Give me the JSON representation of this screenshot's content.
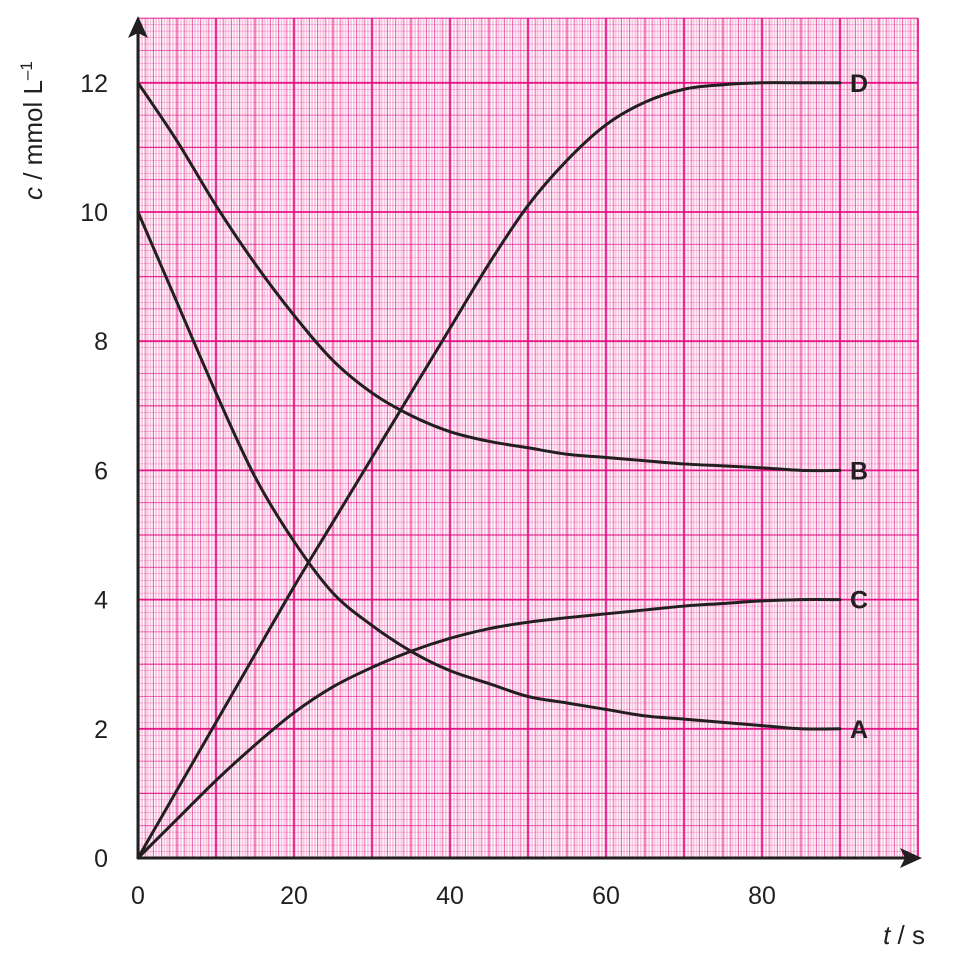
{
  "chart_data": {
    "type": "line",
    "title": "",
    "xlabel": {
      "symbol": "t",
      "unit": " / s"
    },
    "ylabel": {
      "symbol": "c",
      "unit": " / mmol L",
      "sup": "–1"
    },
    "xlim": [
      0,
      100
    ],
    "ylim": [
      0,
      13
    ],
    "xticks": [
      0,
      20,
      40,
      60,
      80
    ],
    "yticks": [
      0,
      2,
      4,
      6,
      8,
      10,
      12
    ],
    "grid": true,
    "colors": {
      "grid": "#e4007c",
      "line": "#231f20",
      "background": "#ffffff"
    },
    "series": [
      {
        "name": "A",
        "x": [
          0,
          5,
          10,
          15,
          20,
          25,
          30,
          35,
          40,
          45,
          50,
          55,
          60,
          65,
          70,
          75,
          80,
          85,
          90
        ],
        "y": [
          10,
          8.6,
          7.2,
          5.9,
          4.9,
          4.1,
          3.6,
          3.2,
          2.9,
          2.7,
          2.5,
          2.4,
          2.3,
          2.2,
          2.15,
          2.1,
          2.05,
          2.0,
          2.0
        ]
      },
      {
        "name": "B",
        "x": [
          0,
          5,
          10,
          15,
          20,
          25,
          30,
          35,
          40,
          45,
          50,
          55,
          60,
          65,
          70,
          75,
          80,
          85,
          90
        ],
        "y": [
          12,
          11.1,
          10.1,
          9.2,
          8.4,
          7.7,
          7.2,
          6.85,
          6.6,
          6.45,
          6.35,
          6.25,
          6.2,
          6.15,
          6.1,
          6.07,
          6.04,
          6.0,
          6.0
        ]
      },
      {
        "name": "C",
        "x": [
          0,
          5,
          10,
          15,
          20,
          25,
          30,
          35,
          40,
          45,
          50,
          55,
          60,
          65,
          70,
          75,
          80,
          85,
          90
        ],
        "y": [
          0,
          0.6,
          1.2,
          1.75,
          2.25,
          2.65,
          2.95,
          3.2,
          3.4,
          3.55,
          3.65,
          3.72,
          3.78,
          3.84,
          3.9,
          3.94,
          3.98,
          4.0,
          4.0
        ]
      },
      {
        "name": "D",
        "x": [
          0,
          5,
          10,
          15,
          20,
          25,
          30,
          35,
          40,
          45,
          50,
          55,
          60,
          65,
          70,
          75,
          80,
          85,
          90
        ],
        "y": [
          0,
          1.05,
          2.1,
          3.15,
          4.2,
          5.2,
          6.2,
          7.2,
          8.2,
          9.2,
          10.1,
          10.8,
          11.35,
          11.7,
          11.9,
          11.97,
          12.0,
          12.0,
          12.0
        ]
      }
    ]
  }
}
